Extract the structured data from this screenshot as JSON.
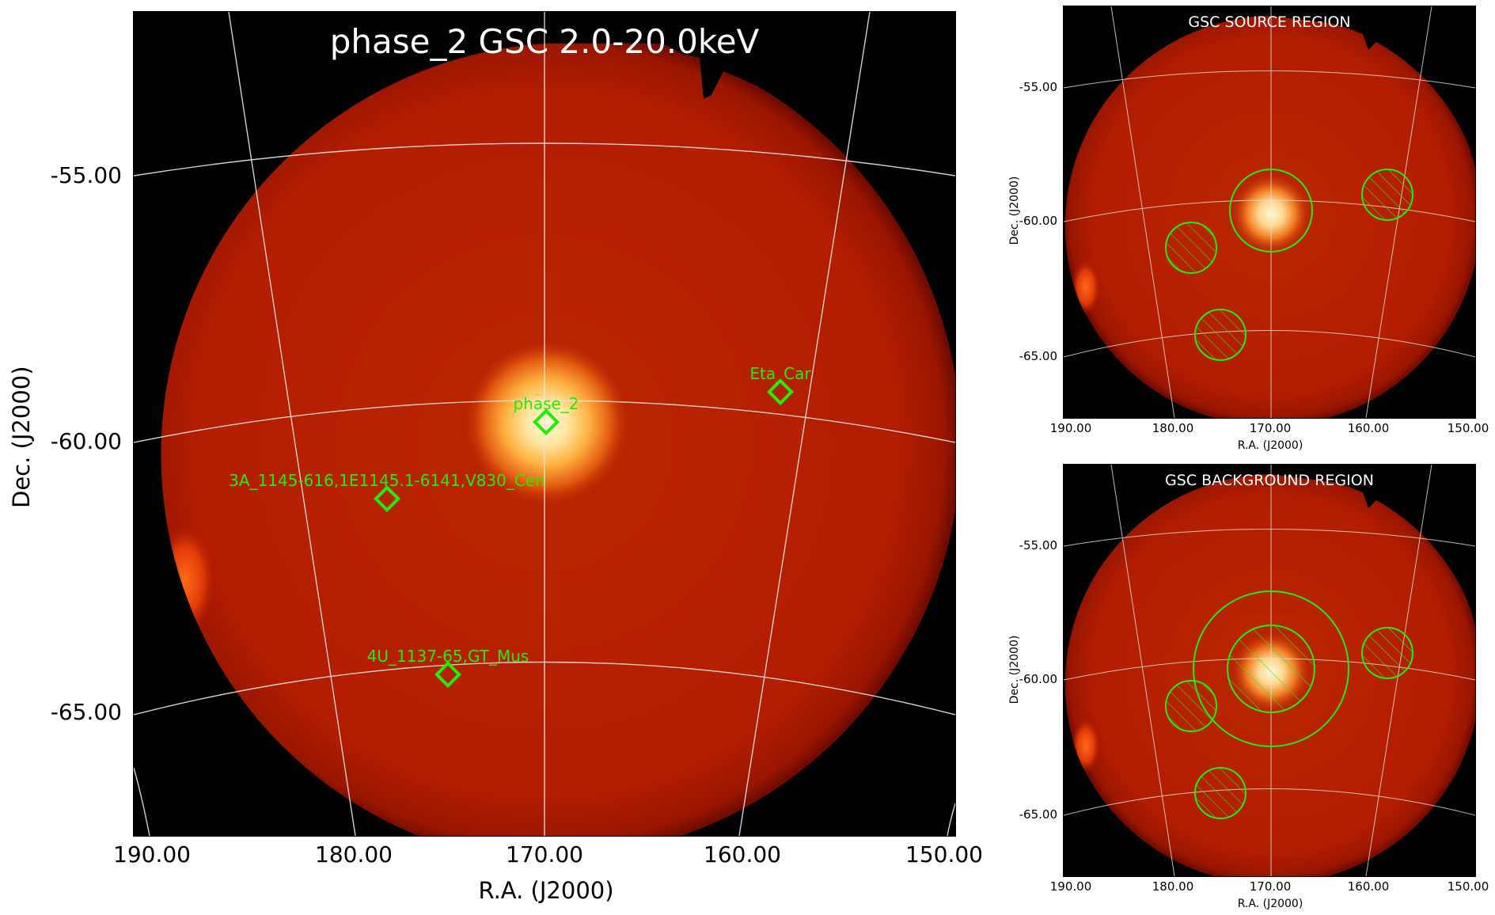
{
  "main_panel": {
    "title": "phase_2 GSC 2.0-20.0keV",
    "xlabel": "R.A. (J2000)",
    "ylabel": "Dec. (J2000)",
    "x_ticks": [
      "190.00",
      "180.00",
      "170.00",
      "160.00",
      "150.00"
    ],
    "y_ticks": [
      "-55.00",
      "-60.00",
      "-65.00"
    ],
    "sources": [
      {
        "label": "phase_2",
        "ra": 170.0,
        "dec": -59.6
      },
      {
        "label": "Eta_Car",
        "ra": 158.0,
        "dec": -59.0
      },
      {
        "label": "3A_1145-616,1E1145.1-6141,V830_Cen",
        "ra": 178.5,
        "dec": -61.0
      },
      {
        "label": "4U_1137-65,GT_Mus",
        "ra": 175.0,
        "dec": -64.2
      }
    ]
  },
  "source_panel": {
    "title": "GSC SOURCE REGION",
    "xlabel": "R.A. (J2000)",
    "ylabel": "Dec. (J2000)",
    "x_ticks": [
      "190.00",
      "180.00",
      "170.00",
      "160.00",
      "150.00"
    ],
    "y_ticks": [
      "-55.00",
      "-60.00",
      "-65.00"
    ]
  },
  "background_panel": {
    "title": "GSC BACKGROUND REGION",
    "xlabel": "R.A. (J2000)",
    "ylabel": "Dec. (J2000)",
    "x_ticks": [
      "190.00",
      "180.00",
      "170.00",
      "160.00",
      "150.00"
    ],
    "y_ticks": [
      "-55.00",
      "-60.00",
      "-65.00"
    ]
  },
  "colors": {
    "sky_background": "#000000",
    "detector_field": "#b41e00",
    "bright_source_core": "#fff6d8",
    "region_marker": "#22ee00",
    "grid_line": "#e6e6e6"
  }
}
